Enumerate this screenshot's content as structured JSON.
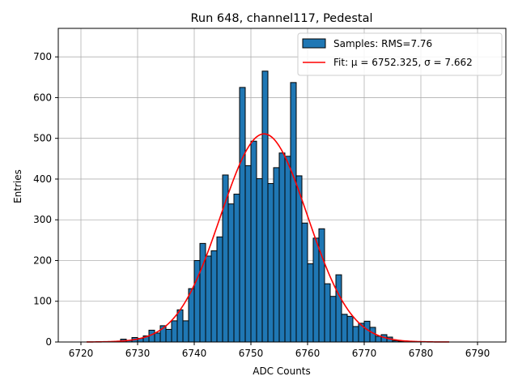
{
  "chart_data": {
    "type": "bar",
    "title": "Run 648, channel117, Pedestal",
    "xlabel": "ADC Counts",
    "ylabel": "Entries",
    "xlim": [
      6716,
      6795
    ],
    "ylim": [
      0,
      770
    ],
    "xticks": [
      6720,
      6730,
      6740,
      6750,
      6760,
      6770,
      6780,
      6790
    ],
    "yticks": [
      0,
      100,
      200,
      300,
      400,
      500,
      600,
      700
    ],
    "grid": true,
    "legend_position": "top-right",
    "bin_width": 1,
    "series": [
      {
        "name": "Samples: RMS=7.76",
        "kind": "histogram",
        "color": "#1f77b4",
        "edgecolor": "#000000",
        "bin_starts": [
          6727,
          6728,
          6729,
          6730,
          6731,
          6732,
          6733,
          6734,
          6735,
          6736,
          6737,
          6738,
          6739,
          6740,
          6741,
          6742,
          6743,
          6744,
          6745,
          6746,
          6747,
          6748,
          6749,
          6750,
          6751,
          6752,
          6753,
          6754,
          6755,
          6756,
          6757,
          6758,
          6759,
          6760,
          6761,
          6762,
          6763,
          6764,
          6765,
          6766,
          6767,
          6768,
          6769,
          6770,
          6771,
          6772,
          6773,
          6774,
          6775,
          6776
        ],
        "values": [
          7,
          4,
          11,
          9,
          15,
          29,
          22,
          40,
          31,
          52,
          79,
          52,
          131,
          200,
          242,
          211,
          224,
          258,
          410,
          339,
          363,
          625,
          433,
          493,
          401,
          665,
          389,
          428,
          464,
          456,
          637,
          408,
          292,
          192,
          255,
          278,
          143,
          112,
          165,
          68,
          63,
          38,
          46,
          51,
          36,
          14,
          18,
          12,
          3,
          2
        ]
      },
      {
        "name": "Fit: μ = 6752.325, σ = 7.662",
        "kind": "gaussian",
        "color": "#ff0000",
        "mu": 6752.325,
        "sigma": 7.662,
        "amplitude": 511,
        "x_range": [
          6721,
          6785
        ]
      }
    ]
  }
}
